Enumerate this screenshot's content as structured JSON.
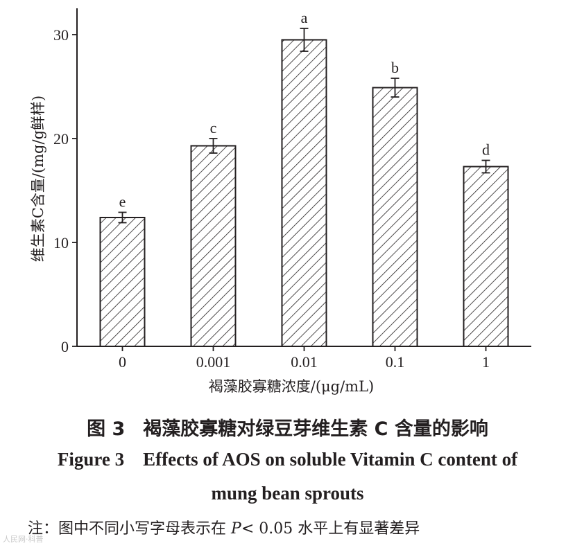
{
  "chart_data": {
    "type": "bar",
    "categories": [
      "0",
      "0.001",
      "0.01",
      "0.1",
      "1"
    ],
    "values": [
      12.4,
      19.3,
      29.5,
      24.9,
      17.3
    ],
    "errors": [
      0.5,
      0.7,
      1.1,
      0.9,
      0.6
    ],
    "significance": [
      "e",
      "c",
      "a",
      "b",
      "d"
    ],
    "xlabel": "褐藻胶寡糖浓度/(μg/mL)",
    "ylabel": "维生素C含量/(mg/g鲜样)",
    "ylim": [
      0,
      32
    ],
    "yticks": [
      "0",
      "10",
      "20",
      "30"
    ],
    "ytick_values": [
      0,
      10,
      20,
      30
    ],
    "grid": false,
    "bar_fill": "hatched"
  },
  "caption": {
    "cn_num": "图 3",
    "cn_text": "褐藻胶寡糖对绿豆芽维生素 C 含量的影响",
    "en_line1": "Figure 3    Effects of AOS on soluble Vitamin C content of",
    "en_line2": "mung bean sprouts"
  },
  "note": {
    "prefix": "注：图中不同小写字母表示在",
    "p_symbol": "P",
    "suffix": "< 0.05 水平上有显著差异"
  },
  "watermark": "人民网·科普"
}
